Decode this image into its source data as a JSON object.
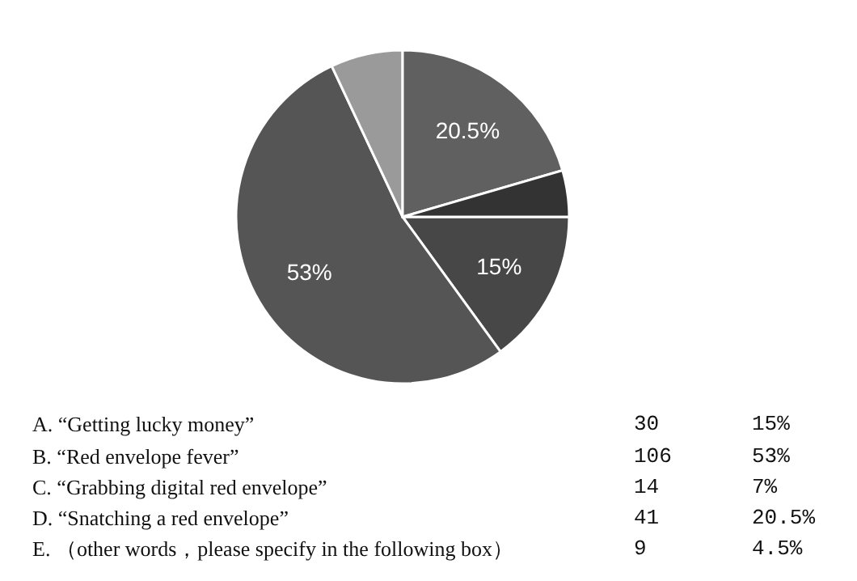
{
  "chart_data": {
    "type": "pie",
    "categories": [
      null,
      null,
      null,
      null,
      null
    ],
    "values": [
      15,
      53,
      7,
      20.5,
      4.5
    ],
    "colors": [
      "#474747",
      "#555555",
      "#9a9a9a",
      "#606060",
      "#333333"
    ],
    "value_labels": [
      "15%",
      "53%",
      null,
      "20.5%",
      null
    ],
    "annotations": [
      "A. “Getting lucky money”",
      "30",
      "15%",
      "B. “Red envelope fever”",
      "106",
      "53%",
      "C. “Grabbing digital red envelope”",
      "14",
      "7%",
      "D. “Snatching a red envelope”",
      "41",
      "20.5%",
      "E. （other words，please specify in the following box）",
      "9",
      "4.5%"
    ]
  }
}
